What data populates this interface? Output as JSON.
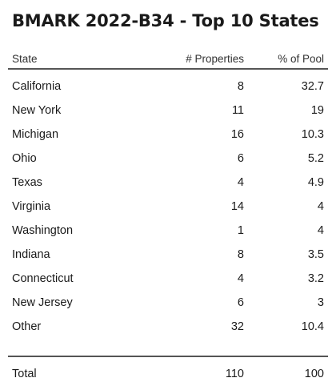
{
  "title": "BMARK 2022-B34 - Top 10 States",
  "columns": {
    "state": "State",
    "properties": "# Properties",
    "pool": "% of Pool"
  },
  "rows": [
    {
      "state": "California",
      "properties": "8",
      "pool": "32.7"
    },
    {
      "state": "New York",
      "properties": "11",
      "pool": "19"
    },
    {
      "state": "Michigan",
      "properties": "16",
      "pool": "10.3"
    },
    {
      "state": "Ohio",
      "properties": "6",
      "pool": "5.2"
    },
    {
      "state": "Texas",
      "properties": "4",
      "pool": "4.9"
    },
    {
      "state": "Virginia",
      "properties": "14",
      "pool": "4"
    },
    {
      "state": "Washington",
      "properties": "1",
      "pool": "4"
    },
    {
      "state": "Indiana",
      "properties": "8",
      "pool": "3.5"
    },
    {
      "state": "Connecticut",
      "properties": "4",
      "pool": "3.2"
    },
    {
      "state": "New Jersey",
      "properties": "6",
      "pool": "3"
    },
    {
      "state": "Other",
      "properties": "32",
      "pool": "10.4"
    }
  ],
  "total": {
    "label": "Total",
    "properties": "110",
    "pool": "100"
  }
}
